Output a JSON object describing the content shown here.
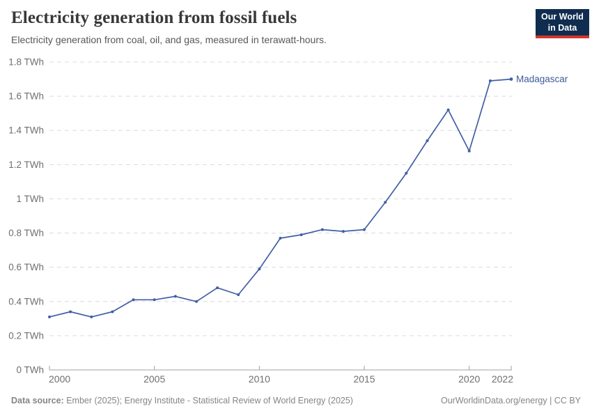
{
  "header": {
    "title": "Electricity generation from fossil fuels",
    "subtitle": "Electricity generation from coal, oil, and gas, measured in terawatt-hours.",
    "logo": {
      "line1": "Our World",
      "line2": "in Data"
    }
  },
  "chart_data": {
    "type": "line",
    "title": "Electricity generation from fossil fuels",
    "unit": "TWh",
    "x": [
      2000,
      2001,
      2002,
      2003,
      2004,
      2005,
      2006,
      2007,
      2008,
      2009,
      2010,
      2011,
      2012,
      2013,
      2014,
      2015,
      2016,
      2017,
      2018,
      2019,
      2020,
      2021,
      2022
    ],
    "series": [
      {
        "name": "Madagascar",
        "color": "#415fa5",
        "label_color": "#3d5a96",
        "values": [
          0.31,
          0.34,
          0.31,
          0.34,
          0.41,
          0.41,
          0.43,
          0.4,
          0.48,
          0.44,
          0.59,
          0.77,
          0.79,
          0.82,
          0.81,
          0.82,
          0.98,
          1.15,
          1.34,
          1.52,
          1.28,
          1.69,
          1.7
        ]
      }
    ],
    "ylim": [
      0,
      1.8
    ],
    "yticks": [
      0,
      0.2,
      0.4,
      0.6,
      0.8,
      1,
      1.2,
      1.4,
      1.6,
      1.8
    ],
    "xticks": [
      2000,
      2005,
      2010,
      2015,
      2020,
      2022
    ],
    "grid": "horizontal-dashed",
    "legend": "series-end-label"
  },
  "footer": {
    "source_label": "Data source:",
    "source_text": "Ember (2025); Energy Institute - Statistical Review of World Energy (2025)",
    "credit": "OurWorldinData.org/energy | CC BY"
  },
  "colors": {
    "grid": "#dcdcdc",
    "axis": "#a0a0a0",
    "tick_label": "#6f6f6f"
  }
}
